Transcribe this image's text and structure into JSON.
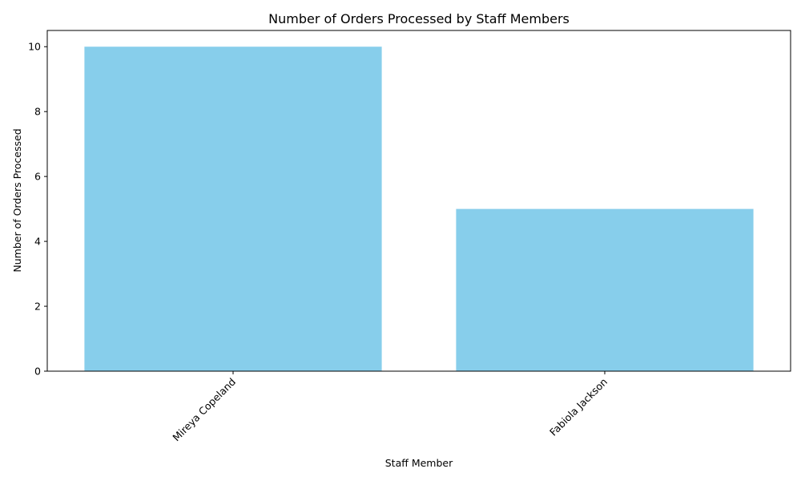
{
  "chart_data": {
    "type": "bar",
    "title": "Number of Orders Processed by Staff Members",
    "xlabel": "Staff Member",
    "ylabel": "Number of Orders Processed",
    "categories": [
      "Mireya Copeland",
      "Fabiola Jackson"
    ],
    "values": [
      10,
      5
    ],
    "ylim": [
      0,
      10.5
    ],
    "yticks": [
      0,
      2,
      4,
      6,
      8,
      10
    ],
    "bar_color": "#87ceeb",
    "grid": false,
    "legend": "none"
  }
}
